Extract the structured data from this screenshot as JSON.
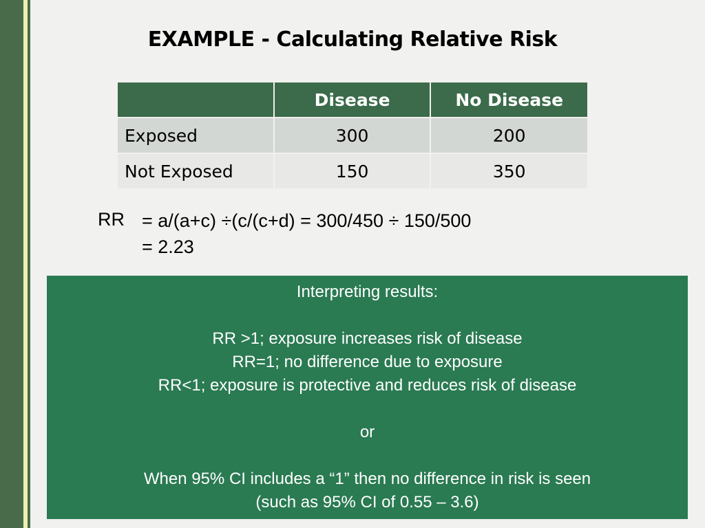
{
  "title": "EXAMPLE - Calculating Relative Risk",
  "table": {
    "headers": [
      "",
      "Disease",
      "No Disease"
    ],
    "rows": [
      {
        "label": "Exposed",
        "disease": "300",
        "no_disease": "200"
      },
      {
        "label": "Not Exposed",
        "disease": "150",
        "no_disease": "350"
      }
    ]
  },
  "formula": {
    "label": "RR",
    "line1": "= a/(a+c) ÷(c/(c+d) = 300/450 ÷ 150/500",
    "line2": "= 2.23"
  },
  "interpretation": {
    "heading": "Interpreting results:",
    "lines": [
      "RR >1; exposure increases risk of disease",
      "RR=1; no difference due to exposure",
      "RR<1; exposure is protective and reduces risk of disease"
    ],
    "or": "or",
    "ci_lines": [
      "When 95% CI includes a “1” then no difference in risk is seen",
      "(such as 95% CI of 0.55 – 3.6)"
    ]
  },
  "colors": {
    "header_green": "#3b6b4a",
    "box_green": "#2a7a52",
    "sidebar_green": "#4a6b4a"
  }
}
